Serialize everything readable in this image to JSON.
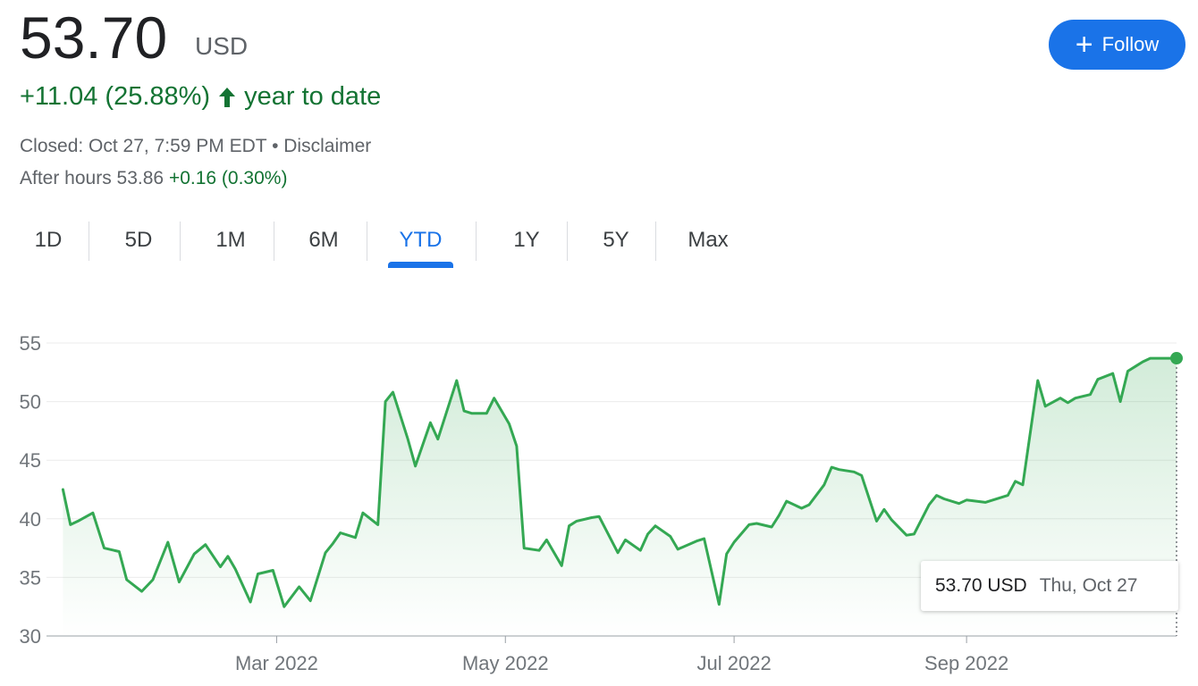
{
  "quote": {
    "price": "53.70",
    "currency": "USD",
    "change": "+11.04 (25.88%)",
    "change_period": "year to date",
    "closed_prefix": "Closed: Oct 27, 7:59 PM EDT • ",
    "disclaimer": "Disclaimer",
    "after_hours_label": "After hours 53.86",
    "after_hours_change": "+0.16 (0.30%)"
  },
  "follow_button": {
    "label": "Follow"
  },
  "tabs": [
    "1D",
    "5D",
    "1M",
    "6M",
    "YTD",
    "1Y",
    "5Y",
    "Max"
  ],
  "active_tab": "YTD",
  "colors": {
    "line": "#34a853",
    "positive": "#137333",
    "accent": "#1a73e8"
  },
  "tooltip": {
    "value": "53.70 USD",
    "date": "Thu, Oct 27"
  },
  "chart_data": {
    "type": "area",
    "ylim": [
      30,
      55
    ],
    "y_ticks": [
      30,
      35,
      40,
      45,
      50,
      55
    ],
    "x_ticks": [
      {
        "label": "Mar 2022",
        "date": "2022-03-01"
      },
      {
        "label": "May 2022",
        "date": "2022-05-01"
      },
      {
        "label": "Jul 2022",
        "date": "2022-07-01"
      },
      {
        "label": "Sep 2022",
        "date": "2022-09-01"
      }
    ],
    "grid": true,
    "series": [
      {
        "x": [
          "2022-01-03",
          "2022-01-05",
          "2022-01-07",
          "2022-01-11",
          "2022-01-14",
          "2022-01-18",
          "2022-01-20",
          "2022-01-24",
          "2022-01-27",
          "2022-01-31",
          "2022-02-03",
          "2022-02-07",
          "2022-02-10",
          "2022-02-14",
          "2022-02-16",
          "2022-02-18",
          "2022-02-22",
          "2022-02-24",
          "2022-02-28",
          "2022-03-03",
          "2022-03-07",
          "2022-03-10",
          "2022-03-14",
          "2022-03-16",
          "2022-03-18",
          "2022-03-22",
          "2022-03-24",
          "2022-03-28",
          "2022-03-30",
          "2022-04-01",
          "2022-04-05",
          "2022-04-07",
          "2022-04-11",
          "2022-04-13",
          "2022-04-18",
          "2022-04-20",
          "2022-04-22",
          "2022-04-26",
          "2022-04-28",
          "2022-05-02",
          "2022-05-04",
          "2022-05-06",
          "2022-05-10",
          "2022-05-12",
          "2022-05-16",
          "2022-05-18",
          "2022-05-20",
          "2022-05-24",
          "2022-05-26",
          "2022-05-31",
          "2022-06-02",
          "2022-06-06",
          "2022-06-08",
          "2022-06-10",
          "2022-06-14",
          "2022-06-16",
          "2022-06-21",
          "2022-06-23",
          "2022-06-27",
          "2022-06-29",
          "2022-07-01",
          "2022-07-05",
          "2022-07-07",
          "2022-07-11",
          "2022-07-13",
          "2022-07-15",
          "2022-07-19",
          "2022-07-21",
          "2022-07-25",
          "2022-07-27",
          "2022-07-29",
          "2022-08-02",
          "2022-08-04",
          "2022-08-08",
          "2022-08-10",
          "2022-08-12",
          "2022-08-16",
          "2022-08-18",
          "2022-08-22",
          "2022-08-24",
          "2022-08-26",
          "2022-08-30",
          "2022-09-01",
          "2022-09-06",
          "2022-09-08",
          "2022-09-12",
          "2022-09-14",
          "2022-09-16",
          "2022-09-20",
          "2022-09-22",
          "2022-09-26",
          "2022-09-28",
          "2022-09-30",
          "2022-10-04",
          "2022-10-06",
          "2022-10-10",
          "2022-10-12",
          "2022-10-14",
          "2022-10-18",
          "2022-10-20",
          "2022-10-24",
          "2022-10-26",
          "2022-10-27"
        ],
        "values": [
          42.5,
          39.5,
          39.8,
          40.5,
          37.5,
          37.2,
          34.8,
          33.8,
          34.8,
          38.0,
          34.6,
          37.0,
          37.8,
          35.9,
          36.8,
          35.7,
          32.9,
          35.3,
          35.6,
          32.5,
          34.2,
          33.0,
          37.1,
          37.9,
          38.8,
          38.4,
          40.5,
          39.5,
          50.0,
          50.8,
          46.8,
          44.5,
          48.2,
          46.8,
          51.8,
          49.2,
          49.0,
          49.0,
          50.3,
          48.1,
          46.2,
          37.5,
          37.3,
          38.2,
          36.0,
          39.4,
          39.8,
          40.1,
          40.2,
          37.1,
          38.2,
          37.3,
          38.7,
          39.4,
          38.5,
          37.4,
          38.1,
          38.3,
          32.7,
          37.0,
          38.0,
          39.5,
          39.6,
          39.3,
          40.3,
          41.5,
          40.9,
          41.2,
          42.9,
          44.4,
          44.2,
          44.0,
          43.7,
          39.8,
          40.8,
          39.9,
          38.6,
          38.7,
          41.2,
          42.0,
          41.7,
          41.3,
          41.6,
          41.4,
          41.6,
          42.0,
          43.2,
          42.9,
          51.8,
          49.6,
          50.3,
          49.9,
          50.3,
          50.6,
          51.9,
          52.4,
          50.0,
          52.6,
          53.4,
          53.7,
          53.7,
          53.7,
          53.7
        ]
      }
    ]
  }
}
